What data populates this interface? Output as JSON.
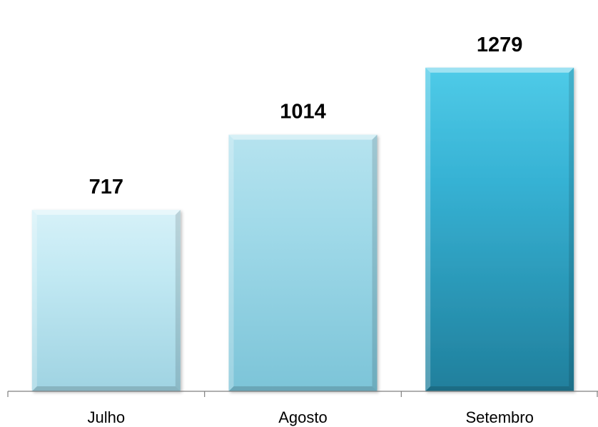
{
  "chart_data": {
    "type": "bar",
    "categories": [
      "Julho",
      "Agosto",
      "Setembro"
    ],
    "values": [
      717,
      1014,
      1279
    ],
    "data_labels": [
      "717",
      "1014",
      "1279"
    ],
    "title": "",
    "xlabel": "",
    "ylabel": "",
    "ylim": [
      0,
      1500
    ],
    "grid": false,
    "legend": "none",
    "bar_colors": [
      {
        "light": "#d6f1f8",
        "base": "#c2e9f3",
        "dark": "#9fd3e2"
      },
      {
        "light": "#b6e3ef",
        "base": "#a1dae9",
        "dark": "#7cc4d8"
      },
      {
        "light": "#4fcbe8",
        "base": "#36b2d4",
        "dark": "#207f9c"
      }
    ],
    "axis_color": "#7f7f7f"
  }
}
